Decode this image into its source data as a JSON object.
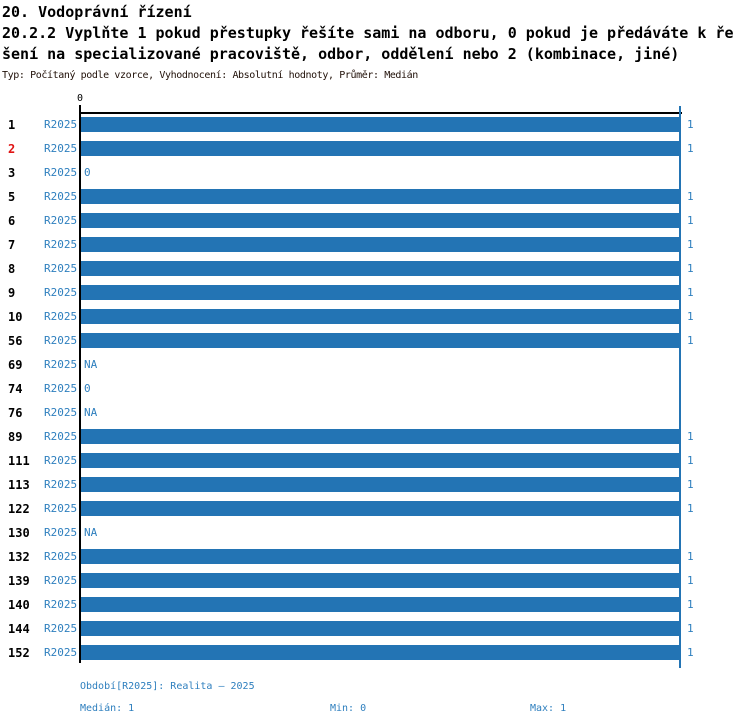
{
  "header": {
    "title": "20. Vodoprávní řízení",
    "subtitle": "20.2.2 Vyplňte 1 pokud přestupky řešíte sami na odboru, 0 pokud je předáváte k řešení na specializované pracoviště, odbor, oddělení nebo 2 (kombinace, jiné)",
    "meta": "Typ: Počítaný podle vzorce, Vyhodnocení: Absolutní hodnoty, Průměr: Medián"
  },
  "axis": {
    "zero_label": "0"
  },
  "footer": {
    "period": "Období[R2025]: Realita – 2025",
    "median": "Medián: 1",
    "min": "Min: 0",
    "max": "Max: 1"
  },
  "colors": {
    "bar_blue": "#2374B4",
    "text_blue": "#2E7FBE",
    "highlight_red": "#E01313",
    "axis_black": "#000000",
    "meta_text": "#201008"
  },
  "chart_data": {
    "type": "bar",
    "orientation": "horizontal",
    "series_label": "R2025",
    "xlim": [
      0,
      1
    ],
    "x_ticks": [
      0,
      1
    ],
    "categories": [
      "1",
      "2",
      "3",
      "5",
      "6",
      "7",
      "8",
      "9",
      "10",
      "56",
      "69",
      "74",
      "76",
      "89",
      "111",
      "113",
      "122",
      "130",
      "132",
      "139",
      "140",
      "144",
      "152"
    ],
    "values": [
      1,
      1,
      0,
      1,
      1,
      1,
      1,
      1,
      1,
      1,
      null,
      0,
      null,
      1,
      1,
      1,
      1,
      null,
      1,
      1,
      1,
      1,
      1
    ],
    "display_values": [
      "1",
      "1",
      "0",
      "1",
      "1",
      "1",
      "1",
      "1",
      "1",
      "1",
      "NA",
      "0",
      "NA",
      "1",
      "1",
      "1",
      "1",
      "NA",
      "1",
      "1",
      "1",
      "1",
      "1"
    ],
    "highlighted_categories": [
      "2"
    ],
    "median": 1,
    "min": 0,
    "max": 1,
    "grid": "max-line-only",
    "legend_position": "none"
  }
}
